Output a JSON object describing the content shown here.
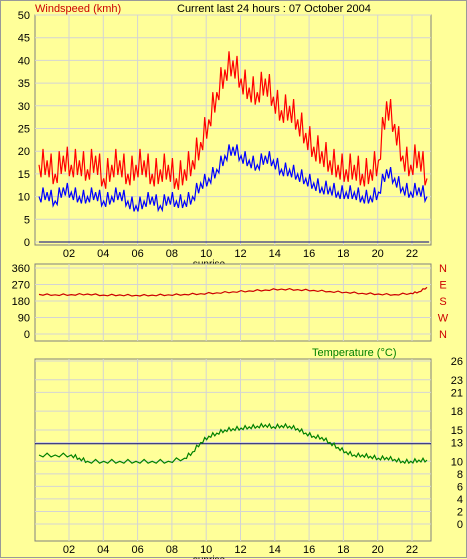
{
  "header": {
    "series_label": "Windspeed (kmh)",
    "title": "Current last 24 hours : 07 October 2004"
  },
  "colors": {
    "background": "#ffff99",
    "grid": "#d4d4d4",
    "gust": "#ff0000",
    "average": "#0000ff",
    "direction": "#cc0000",
    "temperature": "#008000",
    "temp_ref": "#000080",
    "axis_text": "#000000",
    "title_red": "#cc0000"
  },
  "chart_data": [
    {
      "type": "line",
      "title": "Current last 24 hours : 07 October 2004",
      "ylabel": "Windspeed (kmh)",
      "x_ticks": [
        "02",
        "04",
        "06",
        "08",
        "10",
        "12",
        "14",
        "16",
        "18",
        "20",
        "22"
      ],
      "x_annotation": "sunrise",
      "y_ticks": [
        0,
        5,
        10,
        15,
        20,
        25,
        30,
        35,
        40,
        45,
        50
      ],
      "ylim": [
        0,
        50
      ],
      "xlim": [
        0,
        24
      ],
      "series": [
        {
          "name": "gust",
          "x": [
            0,
            0.5,
            1,
            1.5,
            2,
            2.5,
            3,
            3.5,
            4,
            4.5,
            5,
            5.5,
            6,
            6.5,
            7,
            7.5,
            8,
            8.5,
            9,
            9.5,
            10,
            10.5,
            11,
            11.5,
            12,
            12.5,
            13,
            13.5,
            14,
            14.5,
            15,
            15.5,
            16,
            16.5,
            17,
            17.5,
            18,
            18.5,
            19,
            19.5,
            20,
            20.5,
            21,
            21.5,
            22,
            22.5,
            23,
            23.5,
            24
          ],
          "values": [
            17,
            18,
            15,
            19,
            17,
            18,
            16,
            19,
            14,
            17,
            18,
            15,
            17,
            18,
            15,
            16,
            17,
            14,
            16,
            18,
            22,
            27,
            33,
            38,
            40,
            36,
            34,
            33,
            36,
            32,
            29,
            30,
            27,
            24,
            21,
            20,
            18,
            17,
            16,
            17,
            15,
            16,
            18,
            31,
            26,
            19,
            17,
            20,
            14
          ]
        },
        {
          "name": "average",
          "x": [
            0,
            0.5,
            1,
            1.5,
            2,
            2.5,
            3,
            3.5,
            4,
            4.5,
            5,
            5.5,
            6,
            6.5,
            7,
            7.5,
            8,
            8.5,
            9,
            9.5,
            10,
            10.5,
            11,
            11.5,
            12,
            12.5,
            13,
            13.5,
            14,
            14.5,
            15,
            15.5,
            16,
            16.5,
            17,
            17.5,
            18,
            18.5,
            19,
            19.5,
            20,
            20.5,
            21,
            21.5,
            22,
            22.5,
            23,
            23.5,
            24
          ],
          "values": [
            10,
            11,
            9,
            12,
            11,
            10,
            10,
            11,
            9,
            10,
            11,
            9,
            8,
            9,
            10,
            8,
            10,
            9,
            9,
            10,
            13,
            14,
            16,
            19,
            21,
            19,
            18,
            17,
            19,
            18,
            16,
            16,
            15,
            14,
            13,
            12,
            12,
            11,
            11,
            11,
            10,
            10,
            11,
            16,
            14,
            12,
            11,
            12,
            10
          ]
        }
      ]
    },
    {
      "type": "line",
      "y_ticks": [
        0,
        90,
        180,
        270,
        360
      ],
      "y_labels_right": [
        "N",
        "W",
        "S",
        "E",
        "N"
      ],
      "ylim": [
        0,
        360
      ],
      "xlim": [
        0,
        24
      ],
      "series": [
        {
          "name": "direction",
          "x": [
            0,
            1,
            2,
            3,
            4,
            5,
            6,
            7,
            8,
            9,
            10,
            11,
            12,
            13,
            14,
            15,
            16,
            17,
            18,
            19,
            20,
            21,
            22,
            23,
            23.5,
            24
          ],
          "values": [
            216,
            214,
            215,
            218,
            212,
            213,
            211,
            212,
            214,
            216,
            220,
            225,
            230,
            235,
            240,
            245,
            242,
            238,
            232,
            228,
            222,
            218,
            215,
            222,
            230,
            255
          ]
        }
      ]
    },
    {
      "type": "line",
      "title": "Temperature (°C)",
      "x_ticks": [
        "02",
        "04",
        "06",
        "08",
        "10",
        "12",
        "14",
        "16",
        "18",
        "20",
        "22"
      ],
      "x_annotation": "sunrise",
      "y_ticks": [
        0,
        2,
        4,
        6,
        8,
        10,
        13,
        15,
        18,
        21,
        23,
        26
      ],
      "ylim": [
        0,
        26
      ],
      "xlim": [
        0,
        24
      ],
      "reference_line": 12.8,
      "series": [
        {
          "name": "temperature",
          "x": [
            0,
            1,
            2,
            2.5,
            3,
            4,
            5,
            6,
            7,
            8,
            9,
            9.5,
            10,
            10.5,
            11,
            11.5,
            12,
            12.5,
            13,
            13.5,
            14,
            14.5,
            15,
            15.5,
            16,
            16.5,
            17,
            17.5,
            18,
            18.5,
            19,
            19.5,
            20,
            20.5,
            21,
            21.5,
            22,
            22.5,
            23,
            23.5,
            24
          ],
          "values": [
            11,
            11,
            11,
            10.5,
            10,
            10,
            10,
            10,
            10,
            10,
            10.5,
            11.5,
            13,
            14,
            14.5,
            15,
            15.2,
            15.3,
            15.5,
            15.6,
            15.8,
            15.5,
            15.7,
            15.6,
            15.2,
            14.5,
            14,
            13.8,
            13,
            12.2,
            11.5,
            11,
            11,
            10.8,
            10.5,
            10.6,
            10.3,
            10,
            10,
            10.2,
            10.2
          ]
        }
      ]
    }
  ]
}
